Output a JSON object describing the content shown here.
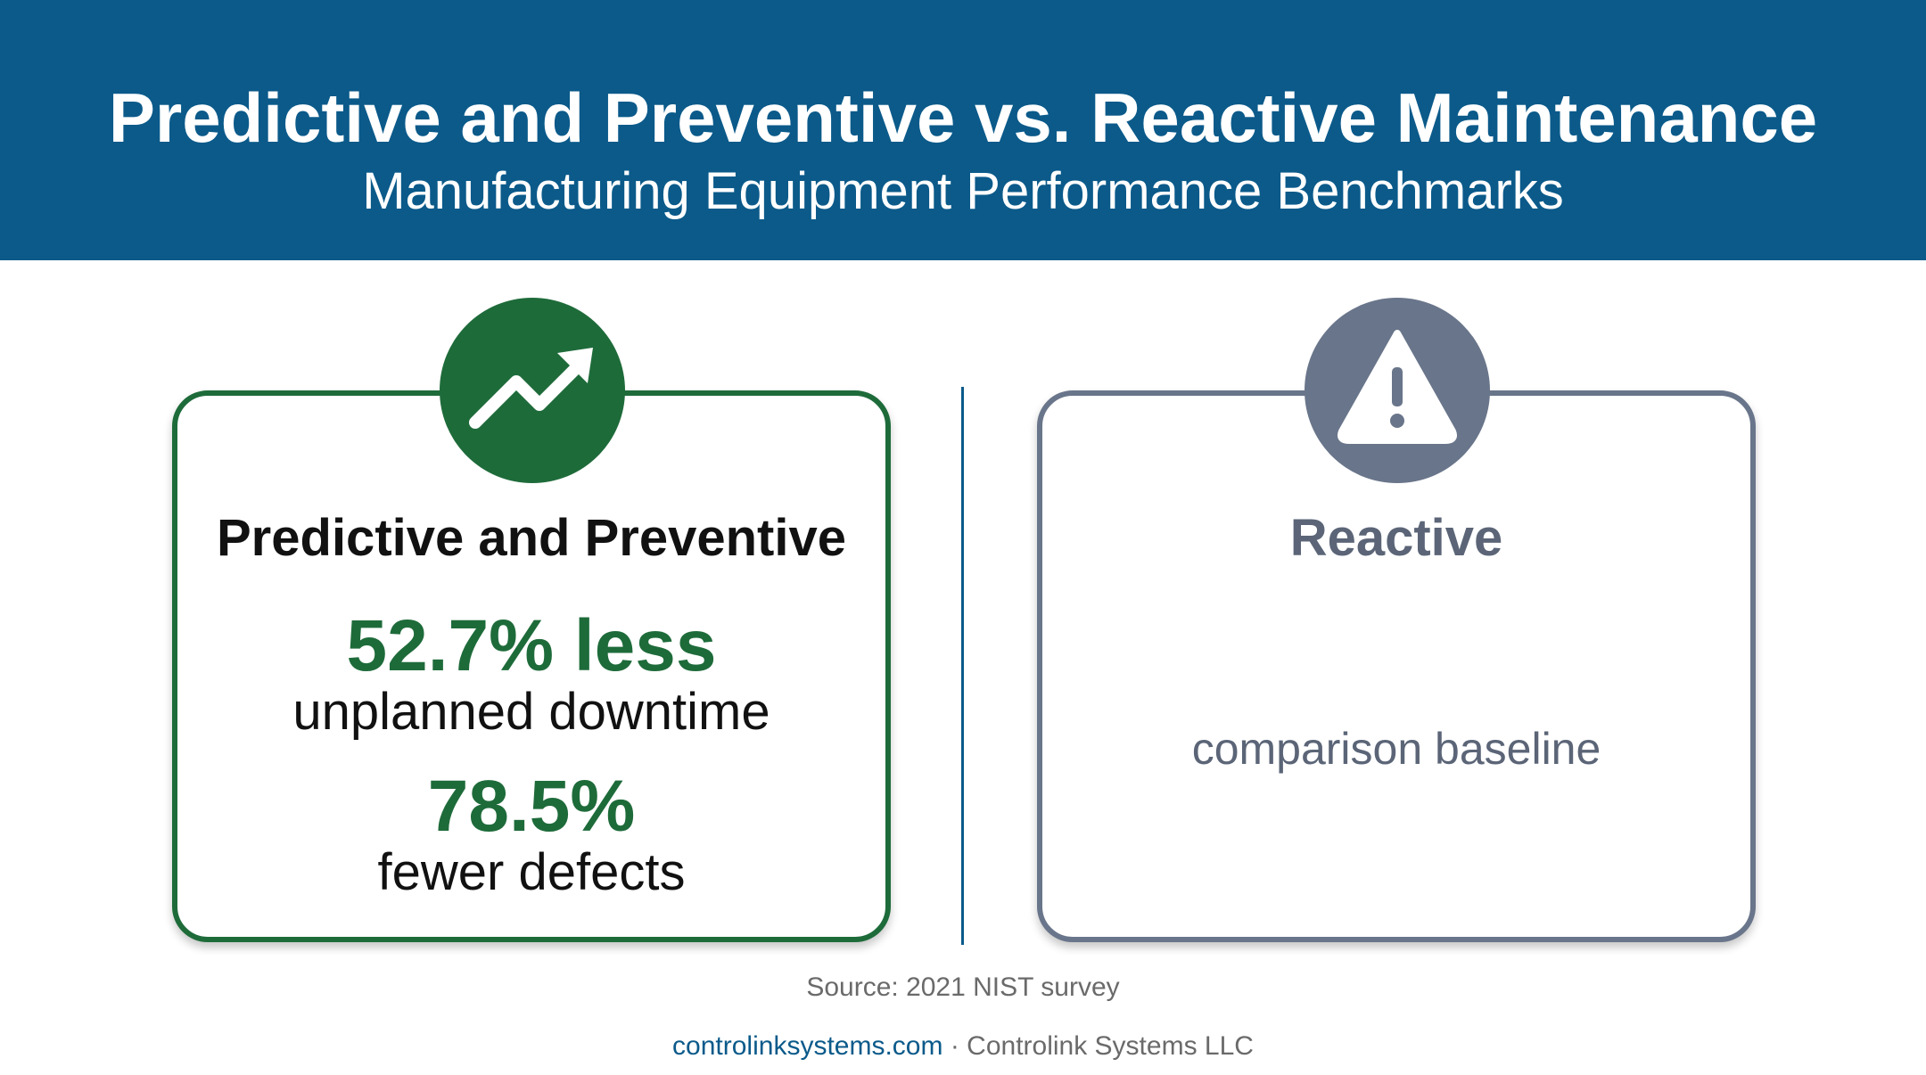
{
  "header": {
    "title": "Predictive and Preventive vs. Reactive Maintenance",
    "subtitle": "Manufacturing Equipment Performance Benchmarks"
  },
  "cards": {
    "predictive": {
      "icon": "trend-up-icon",
      "title": "Predictive and Preventive",
      "stats": [
        {
          "value": "52.7% less",
          "label": "unplanned downtime"
        },
        {
          "value": "78.5%",
          "label": "fewer defects"
        }
      ]
    },
    "reactive": {
      "icon": "warning-icon",
      "title": "Reactive",
      "note": "comparison baseline"
    }
  },
  "source": "Source: 2021 NIST survey",
  "footer": {
    "link": "controlinksystems.com",
    "separator": "·",
    "company": "Controlink Systems LLC"
  },
  "colors": {
    "header_bg": "#0b5a8a",
    "predictive_accent": "#1e6b3a",
    "reactive_accent": "#69758a"
  }
}
